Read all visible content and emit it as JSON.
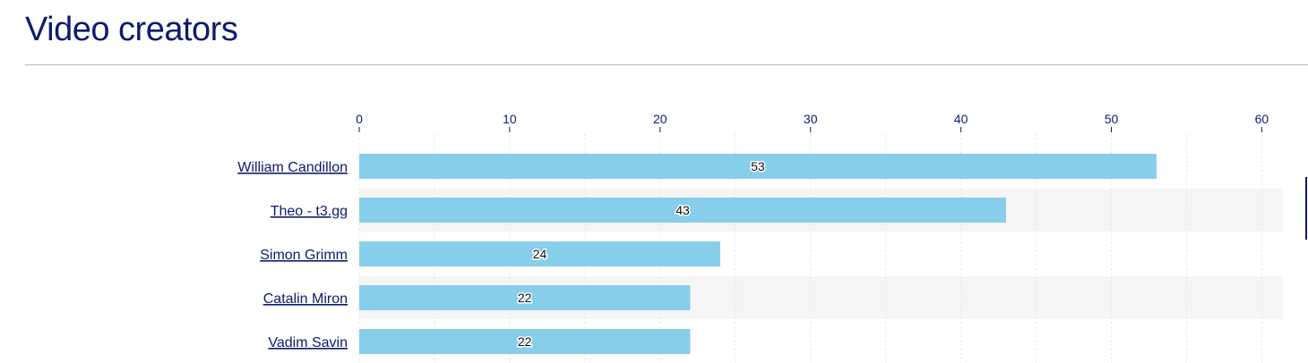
{
  "section": {
    "title": "Video creators"
  },
  "chart_data": {
    "type": "bar",
    "orientation": "horizontal",
    "title": "",
    "xlabel": "",
    "ylabel": "",
    "categories": [
      "William Candillon",
      "Theo - t3.gg",
      "Simon Grimm",
      "Catalin Miron",
      "Vadim Savin"
    ],
    "values": [
      53,
      43,
      24,
      22,
      22
    ],
    "xlim": [
      0,
      62
    ],
    "x_ticks": [
      0,
      10,
      20,
      30,
      40,
      50,
      60
    ],
    "grid": true,
    "axis_position": "top",
    "data_labels": true,
    "colors": {
      "bar": "#87ceeb",
      "text": "#0d1b6e",
      "row_stripe": "#f5f5f5",
      "grid": "#e6e6e6"
    }
  }
}
